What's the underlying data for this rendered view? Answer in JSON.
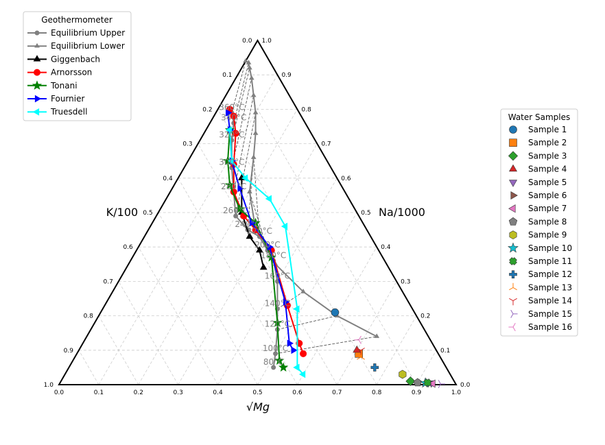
{
  "chart_data": {
    "type": "scatter",
    "subtype": "ternary (Giggenbach Na-K-Mg)",
    "axes": {
      "left": "K/100",
      "right": "Na/1000",
      "bottom": "√Mg",
      "left_ticks": [
        "0.0",
        "0.1",
        "0.2",
        "0.3",
        "0.4",
        "0.5",
        "0.6",
        "0.7",
        "0.8",
        "0.9",
        "1.0"
      ],
      "right_ticks": [
        "1.0",
        "0.9",
        "0.8",
        "0.7",
        "0.6",
        "0.5",
        "0.4",
        "0.3",
        "0.2",
        "0.1",
        "0.0"
      ],
      "bottom_ticks": [
        "0.0",
        "0.1",
        "0.2",
        "0.3",
        "0.4",
        "0.5",
        "0.6",
        "0.7",
        "0.8",
        "0.9",
        "1.0"
      ],
      "grid": true
    },
    "geothermometer_legend": {
      "title": "Geothermometer",
      "placement": "top-left",
      "entries": [
        {
          "name": "Equilibrium Upper",
          "color": "#808080",
          "marker": "circle"
        },
        {
          "name": "Equilibrium Lower",
          "color": "#808080",
          "marker": "triangle-up"
        },
        {
          "name": "Giggenbach",
          "color": "#000000",
          "marker": "triangle-up"
        },
        {
          "name": "Arnorsson",
          "color": "#ff0000",
          "marker": "circle"
        },
        {
          "name": "Tonani",
          "color": "#008000",
          "marker": "star"
        },
        {
          "name": "Fournier",
          "color": "#0000ff",
          "marker": "triangle-right"
        },
        {
          "name": "Truesdell",
          "color": "#00ffff",
          "marker": "triangle-left"
        }
      ]
    },
    "curves": [
      {
        "name": "Equilibrium Upper",
        "color": "#808080",
        "marker": "circle",
        "points": [
          [
            0.04,
            0.79
          ],
          [
            0.06,
            0.76
          ],
          [
            0.08,
            0.71
          ],
          [
            0.12,
            0.63
          ],
          [
            0.16,
            0.56
          ],
          [
            0.2,
            0.49
          ],
          [
            0.25,
            0.45
          ],
          [
            0.29,
            0.43
          ],
          [
            0.33,
            0.39
          ],
          [
            0.36,
            0.36
          ],
          [
            0.4,
            0.3
          ],
          [
            0.44,
            0.22
          ],
          [
            0.47,
            0.16
          ],
          [
            0.5,
            0.09
          ],
          [
            0.515,
            0.05
          ]
        ]
      },
      {
        "name": "Equilibrium Lower",
        "color": "#808080",
        "marker": "triangle-up",
        "points": [
          [
            0.0,
            0.94
          ],
          [
            0.01,
            0.935
          ],
          [
            0.02,
            0.92
          ],
          [
            0.04,
            0.89
          ],
          [
            0.07,
            0.84
          ],
          [
            0.1,
            0.79
          ],
          [
            0.13,
            0.73
          ],
          [
            0.16,
            0.66
          ],
          [
            0.2,
            0.56
          ],
          [
            0.27,
            0.45
          ],
          [
            0.37,
            0.35
          ],
          [
            0.48,
            0.27
          ],
          [
            0.6,
            0.2
          ],
          [
            0.73,
            0.14
          ]
        ]
      },
      {
        "name": "Giggenbach",
        "color": "#000000",
        "marker": "triangle-up",
        "points": [
          [
            0.16,
            0.6
          ],
          [
            0.21,
            0.5
          ],
          [
            0.265,
            0.43
          ],
          [
            0.31,
            0.39
          ],
          [
            0.345,
            0.34
          ]
        ]
      },
      {
        "name": "Arnorsson",
        "color": "#ff0000",
        "marker": "circle",
        "points": [
          [
            0.03,
            0.8
          ],
          [
            0.05,
            0.78
          ],
          [
            0.08,
            0.73
          ],
          [
            0.12,
            0.64
          ],
          [
            0.16,
            0.56
          ],
          [
            0.22,
            0.49
          ],
          [
            0.27,
            0.45
          ],
          [
            0.34,
            0.39
          ],
          [
            0.46,
            0.23
          ],
          [
            0.545,
            0.12
          ],
          [
            0.57,
            0.09
          ]
        ]
      },
      {
        "name": "Tonani",
        "color": "#008000",
        "marker": "star",
        "points": [
          [
            0.06,
            0.74
          ],
          [
            0.1,
            0.65
          ],
          [
            0.14,
            0.58
          ],
          [
            0.2,
            0.51
          ],
          [
            0.26,
            0.47
          ],
          [
            0.35,
            0.37
          ],
          [
            0.46,
            0.18
          ],
          [
            0.52,
            0.07
          ],
          [
            0.54,
            0.05
          ]
        ]
      },
      {
        "name": "Fournier",
        "color": "#0000ff",
        "marker": "triangle-right",
        "points": [
          [
            0.03,
            0.79
          ],
          [
            0.06,
            0.74
          ],
          [
            0.11,
            0.65
          ],
          [
            0.17,
            0.57
          ],
          [
            0.25,
            0.47
          ],
          [
            0.33,
            0.4
          ],
          [
            0.45,
            0.24
          ],
          [
            0.52,
            0.12
          ],
          [
            0.54,
            0.1
          ]
        ]
      },
      {
        "name": "Truesdell",
        "color": "#00ffff",
        "marker": "triangle-left",
        "points": [
          [
            0.06,
            0.74
          ],
          [
            0.11,
            0.65
          ],
          [
            0.17,
            0.6
          ],
          [
            0.26,
            0.54
          ],
          [
            0.34,
            0.46
          ],
          [
            0.49,
            0.22
          ],
          [
            0.575,
            0.05
          ],
          [
            0.6,
            0.03
          ]
        ]
      }
    ],
    "equilibrium_tie_lines": true,
    "temperature_labels": [
      "80°C",
      "100°C",
      "120°C",
      "140°C",
      "160°C",
      "180°C",
      "200°C",
      "220°C",
      "240°C",
      "260°C",
      "280°C",
      "300°C",
      "320°C",
      "340°C",
      "360°C"
    ],
    "samples_legend": {
      "title": "Water Samples",
      "placement": "right",
      "entries": [
        {
          "name": "Sample 1",
          "color": "#1f77b4",
          "marker": "circle",
          "point": [
            0.59,
            0.21
          ]
        },
        {
          "name": "Sample 2",
          "color": "#ff7f0e",
          "marker": "square",
          "point": [
            0.71,
            0.09
          ]
        },
        {
          "name": "Sample 3",
          "color": "#2ca02c",
          "marker": "diamond",
          "point": [
            0.88,
            0.01
          ]
        },
        {
          "name": "Sample 4",
          "color": "#d62728",
          "marker": "triangle-up",
          "point": [
            0.7,
            0.1
          ]
        },
        {
          "name": "Sample 5",
          "color": "#9467bd",
          "marker": "triangle-down",
          "point": [
            0.935,
            0.005
          ]
        },
        {
          "name": "Sample 6",
          "color": "#8c564b",
          "marker": "triangle-right",
          "point": [
            0.93,
            0.004
          ]
        },
        {
          "name": "Sample 7",
          "color": "#e377c2",
          "marker": "triangle-left",
          "point": [
            0.94,
            0.003
          ]
        },
        {
          "name": "Sample 8",
          "color": "#7f7f7f",
          "marker": "pentagon",
          "point": [
            0.9,
            0.006
          ]
        },
        {
          "name": "Sample 9",
          "color": "#bcbd22",
          "marker": "hexagon",
          "point": [
            0.85,
            0.03
          ]
        },
        {
          "name": "Sample 10",
          "color": "#17becf",
          "marker": "star",
          "point": [
            0.92,
            0.005
          ]
        },
        {
          "name": "Sample 11",
          "color": "#2ca02c",
          "marker": "x",
          "point": [
            0.925,
            0.006
          ]
        },
        {
          "name": "Sample 12",
          "color": "#1f77b4",
          "marker": "plus",
          "point": [
            0.77,
            0.05
          ]
        },
        {
          "name": "Sample 13",
          "color": "#ff7f0e",
          "marker": "tri-down",
          "point": [
            0.72,
            0.08
          ]
        },
        {
          "name": "Sample 14",
          "color": "#d62728",
          "marker": "tri-up",
          "point": [
            0.71,
            0.1
          ]
        },
        {
          "name": "Sample 15",
          "color": "#9467bd",
          "marker": "tri-left",
          "point": [
            0.96,
            0.002
          ]
        },
        {
          "name": "Sample 16",
          "color": "#e377c2",
          "marker": "tri-right",
          "point": [
            0.69,
            0.13
          ]
        }
      ]
    }
  }
}
